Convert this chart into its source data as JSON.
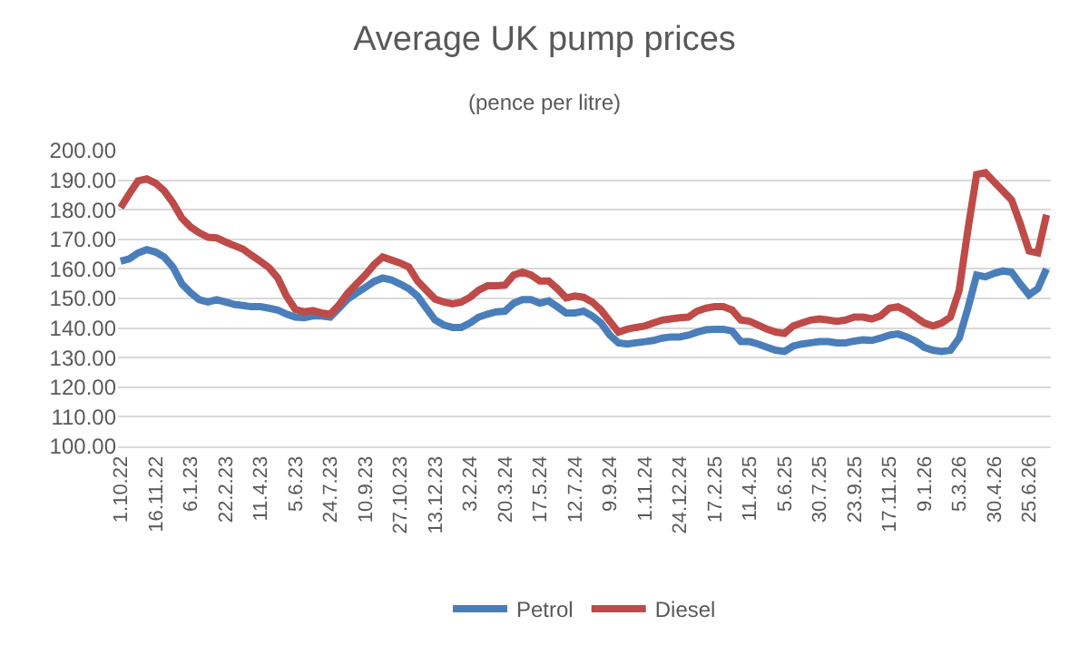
{
  "chart_data": {
    "type": "line",
    "title": "Average UK pump prices",
    "subtitle": "(pence per litre)",
    "categories": [
      "1.10.22",
      null,
      null,
      null,
      "16.11.22",
      null,
      null,
      null,
      "6.1.23",
      null,
      null,
      null,
      "22.2.23",
      null,
      null,
      null,
      "11.4.23",
      null,
      null,
      null,
      "5.6.23",
      null,
      null,
      null,
      "24.7.23",
      null,
      null,
      null,
      "10.9.23",
      null,
      null,
      null,
      "27.10.23",
      null,
      null,
      null,
      "13.12.23",
      null,
      null,
      null,
      "3.2.24",
      null,
      null,
      null,
      "20.3.24",
      null,
      null,
      null,
      "17.5.24",
      null,
      null,
      null,
      "12.7.24",
      null,
      null,
      null,
      "9.9.24",
      null,
      null,
      null,
      "1.11.24",
      null,
      null,
      null,
      "24.12.24",
      null,
      null,
      null,
      "17.2.25",
      null,
      null,
      null,
      "11.4.25",
      null,
      null,
      null,
      "5.6.25",
      null,
      null,
      null,
      "30.7.25",
      null,
      null,
      null,
      "23.9.25",
      null,
      null,
      null,
      "17.11.25",
      null,
      null,
      null,
      "9.1.26",
      null,
      null,
      null,
      "5.3.26",
      null,
      null,
      null,
      "30.4.26",
      null,
      null,
      null,
      "25.6.26",
      null,
      null
    ],
    "series": [
      {
        "name": "Petrol",
        "color": "#4a7ebb",
        "values": [
          162.6,
          163.4,
          165.4,
          166.5,
          165.7,
          164,
          160.6,
          155,
          152,
          149.6,
          148.8,
          149.6,
          148.8,
          148,
          147.6,
          147.2,
          147.2,
          146.7,
          146.1,
          144.7,
          143.7,
          143.5,
          144.1,
          144.1,
          143.7,
          146.7,
          149.8,
          151.8,
          153.7,
          155.7,
          156.9,
          156.3,
          154.9,
          153.3,
          150.8,
          146.7,
          142.7,
          141,
          140.2,
          140.2,
          141.7,
          143.7,
          144.7,
          145.5,
          145.7,
          148.4,
          149.6,
          149.6,
          148.4,
          149.2,
          147.2,
          145.1,
          145.1,
          145.7,
          144.1,
          141.7,
          137.6,
          135,
          134.6,
          135,
          135.4,
          135.8,
          136.6,
          137,
          137,
          137.6,
          138.6,
          139.4,
          139.6,
          139.6,
          139,
          135.4,
          135.4,
          134.6,
          133.5,
          132.5,
          132.1,
          133.9,
          134.6,
          135,
          135.4,
          135.4,
          135,
          135,
          135.6,
          136,
          135.8,
          136.6,
          137.6,
          138,
          137,
          135.6,
          133.5,
          132.5,
          132.1,
          132.5,
          136.6,
          146.7,
          157.9,
          157.3,
          158.5,
          159.3,
          158.9,
          154.9,
          151.2,
          153.3,
          160
        ]
      },
      {
        "name": "Diesel",
        "color": "#be4b48",
        "values": [
          180.7,
          185.4,
          189.8,
          190.4,
          189,
          186.4,
          182.3,
          177.2,
          174.2,
          172.2,
          170.7,
          170.5,
          169.1,
          167.9,
          166.7,
          164.6,
          162.6,
          160.4,
          156.9,
          150.8,
          146.3,
          145.5,
          145.9,
          145.1,
          144.7,
          147.8,
          151.8,
          154.9,
          157.9,
          161.4,
          164,
          163,
          162,
          160.6,
          155.9,
          152.8,
          149.8,
          148.8,
          148.2,
          148.8,
          150.4,
          152.8,
          154.3,
          154.3,
          154.5,
          157.9,
          158.9,
          157.9,
          155.9,
          155.9,
          153.3,
          150.2,
          150.8,
          150.4,
          148.8,
          146.1,
          142.3,
          138.6,
          139.6,
          140.2,
          140.7,
          141.7,
          142.7,
          143.1,
          143.5,
          143.7,
          145.7,
          146.7,
          147.2,
          147.2,
          146.1,
          142.7,
          142.3,
          141,
          139.6,
          138.6,
          138.2,
          140.7,
          141.7,
          142.7,
          143.1,
          142.7,
          142.3,
          142.7,
          143.7,
          143.7,
          143.1,
          144.1,
          146.7,
          147.2,
          145.7,
          143.7,
          141.7,
          140.7,
          141.7,
          143.7,
          152.8,
          173.2,
          191.9,
          192.5,
          189.4,
          186.4,
          183.3,
          175.2,
          166.1,
          165.4,
          178.3
        ]
      }
    ],
    "ylim": [
      100,
      200
    ],
    "yticks": [
      {
        "value": 100,
        "label": "100.00"
      },
      {
        "value": 110,
        "label": "110.00"
      },
      {
        "value": 120,
        "label": "120.00"
      },
      {
        "value": 130,
        "label": "130.00"
      },
      {
        "value": 140,
        "label": "140.00"
      },
      {
        "value": 150,
        "label": "150.00"
      },
      {
        "value": 160,
        "label": "160.00"
      },
      {
        "value": 170,
        "label": "170.00"
      },
      {
        "value": 180,
        "label": "180.00"
      },
      {
        "value": 190,
        "label": "190.00"
      },
      {
        "value": 200,
        "label": "200.00"
      }
    ],
    "grid": "y",
    "legend": "bottom",
    "marker": "none",
    "line_style": "solid"
  }
}
